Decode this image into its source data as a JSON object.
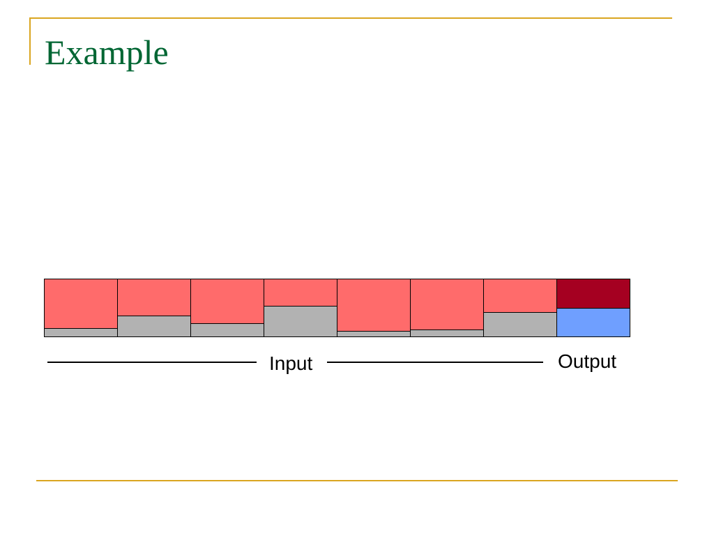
{
  "slide": {
    "title": "Example",
    "accent_color": "#DAA520",
    "title_color": "#006633"
  },
  "diagram": {
    "input_label": "Input",
    "output_label": "Output",
    "colors": {
      "input_top": "#FF6B6B",
      "input_fill": "#B2B2B2",
      "output_top": "#A50021",
      "output_fill": "#6F9FFF",
      "border": "#000000"
    },
    "cells": [
      {
        "role": "input",
        "fill_fraction": 0.13
      },
      {
        "role": "input",
        "fill_fraction": 0.35
      },
      {
        "role": "input",
        "fill_fraction": 0.22
      },
      {
        "role": "input",
        "fill_fraction": 0.52
      },
      {
        "role": "input",
        "fill_fraction": 0.09
      },
      {
        "role": "input",
        "fill_fraction": 0.11
      },
      {
        "role": "input",
        "fill_fraction": 0.41
      },
      {
        "role": "output",
        "fill_fraction": 0.49
      }
    ]
  }
}
